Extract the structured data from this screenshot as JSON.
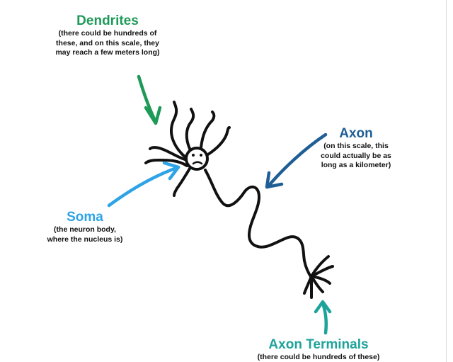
{
  "labels": {
    "dendrites": {
      "title": "Dendrites",
      "note_lines": [
        "(there could be hundreds of",
        "these, and on this scale, they",
        "may reach a few meters long)"
      ]
    },
    "axon": {
      "title": "Axon",
      "note_lines": [
        "(on this scale, this",
        "could actually be as",
        "long as a kilometer)"
      ]
    },
    "soma": {
      "title": "Soma",
      "note_lines": [
        "(the neuron body,",
        "where the nucleus is)"
      ]
    },
    "terminals": {
      "title": "Axon Terminals",
      "note_lines": [
        "(there could be hundreds of these)"
      ]
    }
  },
  "colors": {
    "dendrites": "#1e9a58",
    "axon": "#1f5f95",
    "soma": "#2ea3e6",
    "terminals": "#1ea39a",
    "ink": "#111111"
  }
}
